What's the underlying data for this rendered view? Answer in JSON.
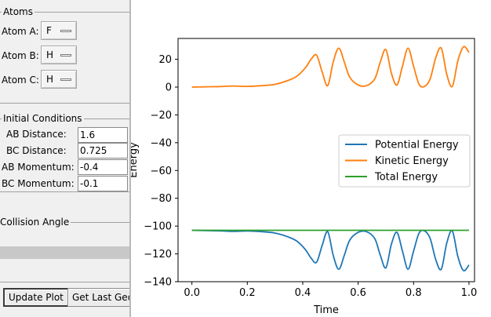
{
  "atoms": {
    "title": "Atoms",
    "items": [
      {
        "label": "Atom A:",
        "value": "F"
      },
      {
        "label": "Atom B:",
        "value": "H"
      },
      {
        "label": "Atom C:",
        "value": "H"
      }
    ]
  },
  "initial_conditions": {
    "title": "Initial Conditions",
    "fields": [
      {
        "label": "AB Distance:",
        "value": "1.6"
      },
      {
        "label": "BC Distance:",
        "value": "0.725"
      },
      {
        "label": "AB Momentum:",
        "value": "-0.4"
      },
      {
        "label": "BC Momentum:",
        "value": "-0.1"
      }
    ]
  },
  "collision_angle": {
    "title": "Collision Angle"
  },
  "buttons": {
    "update_plot": "Update Plot",
    "get_last_geom": "Get Last Geom"
  },
  "chart_data": {
    "type": "line",
    "xlabel": "Time",
    "ylabel": "Energy",
    "xlim": [
      -0.05,
      1.02
    ],
    "ylim": [
      -140,
      35
    ],
    "xticks": [
      0.0,
      0.2,
      0.4,
      0.6,
      0.8,
      1.0
    ],
    "xtick_labels": [
      "0.0",
      "0.2",
      "0.4",
      "0.6",
      "0.8",
      "1.0"
    ],
    "yticks": [
      20,
      0,
      -20,
      -40,
      -60,
      -80,
      -100,
      -120,
      -140
    ],
    "ytick_labels": [
      "20",
      "0",
      "−20",
      "−40",
      "−60",
      "−80",
      "−100",
      "−120",
      "−140"
    ],
    "legend": "center-right",
    "x": [
      0.0,
      0.05,
      0.1,
      0.15,
      0.2,
      0.25,
      0.3,
      0.35,
      0.38,
      0.41,
      0.43,
      0.45,
      0.47,
      0.49,
      0.51,
      0.53,
      0.55,
      0.57,
      0.6,
      0.63,
      0.66,
      0.68,
      0.7,
      0.72,
      0.74,
      0.76,
      0.78,
      0.8,
      0.82,
      0.84,
      0.86,
      0.88,
      0.9,
      0.92,
      0.94,
      0.96,
      0.98,
      1.0
    ],
    "series": [
      {
        "name": "Potential Energy",
        "color": "#1f77b4",
        "values": [
          -103,
          -103.2,
          -103.4,
          -103.8,
          -103.5,
          -104,
          -105,
          -108,
          -111,
          -117,
          -123,
          -126,
          -114,
          -104,
          -121,
          -131,
          -121,
          -110,
          -104.5,
          -104,
          -109,
          -121,
          -130,
          -113,
          -104.5,
          -118,
          -131,
          -118,
          -105,
          -103.5,
          -109,
          -124,
          -131,
          -112,
          -103.5,
          -122,
          -132,
          -128
        ]
      },
      {
        "name": "Kinetic Energy",
        "color": "#ff7f0e",
        "values": [
          0,
          0.2,
          0.4,
          0.8,
          0.5,
          1,
          2,
          5,
          8,
          14,
          20,
          23,
          11,
          1,
          18,
          28,
          18,
          7,
          1.5,
          1,
          6,
          18,
          27,
          10,
          1.5,
          15,
          28,
          15,
          2,
          0.5,
          6,
          21,
          28,
          9,
          0.5,
          19,
          29,
          25
        ]
      },
      {
        "name": "Total Energy",
        "color": "#2ca02c",
        "values": [
          -103,
          -103,
          -103,
          -103,
          -103,
          -103,
          -103,
          -103,
          -103,
          -103,
          -103,
          -103,
          -103,
          -103,
          -103,
          -103,
          -103,
          -103,
          -103,
          -103,
          -103,
          -103,
          -103,
          -103,
          -103,
          -103,
          -103,
          -103,
          -103,
          -103,
          -103,
          -103,
          -103,
          -103,
          -103,
          -103,
          -103,
          -103
        ]
      }
    ]
  }
}
